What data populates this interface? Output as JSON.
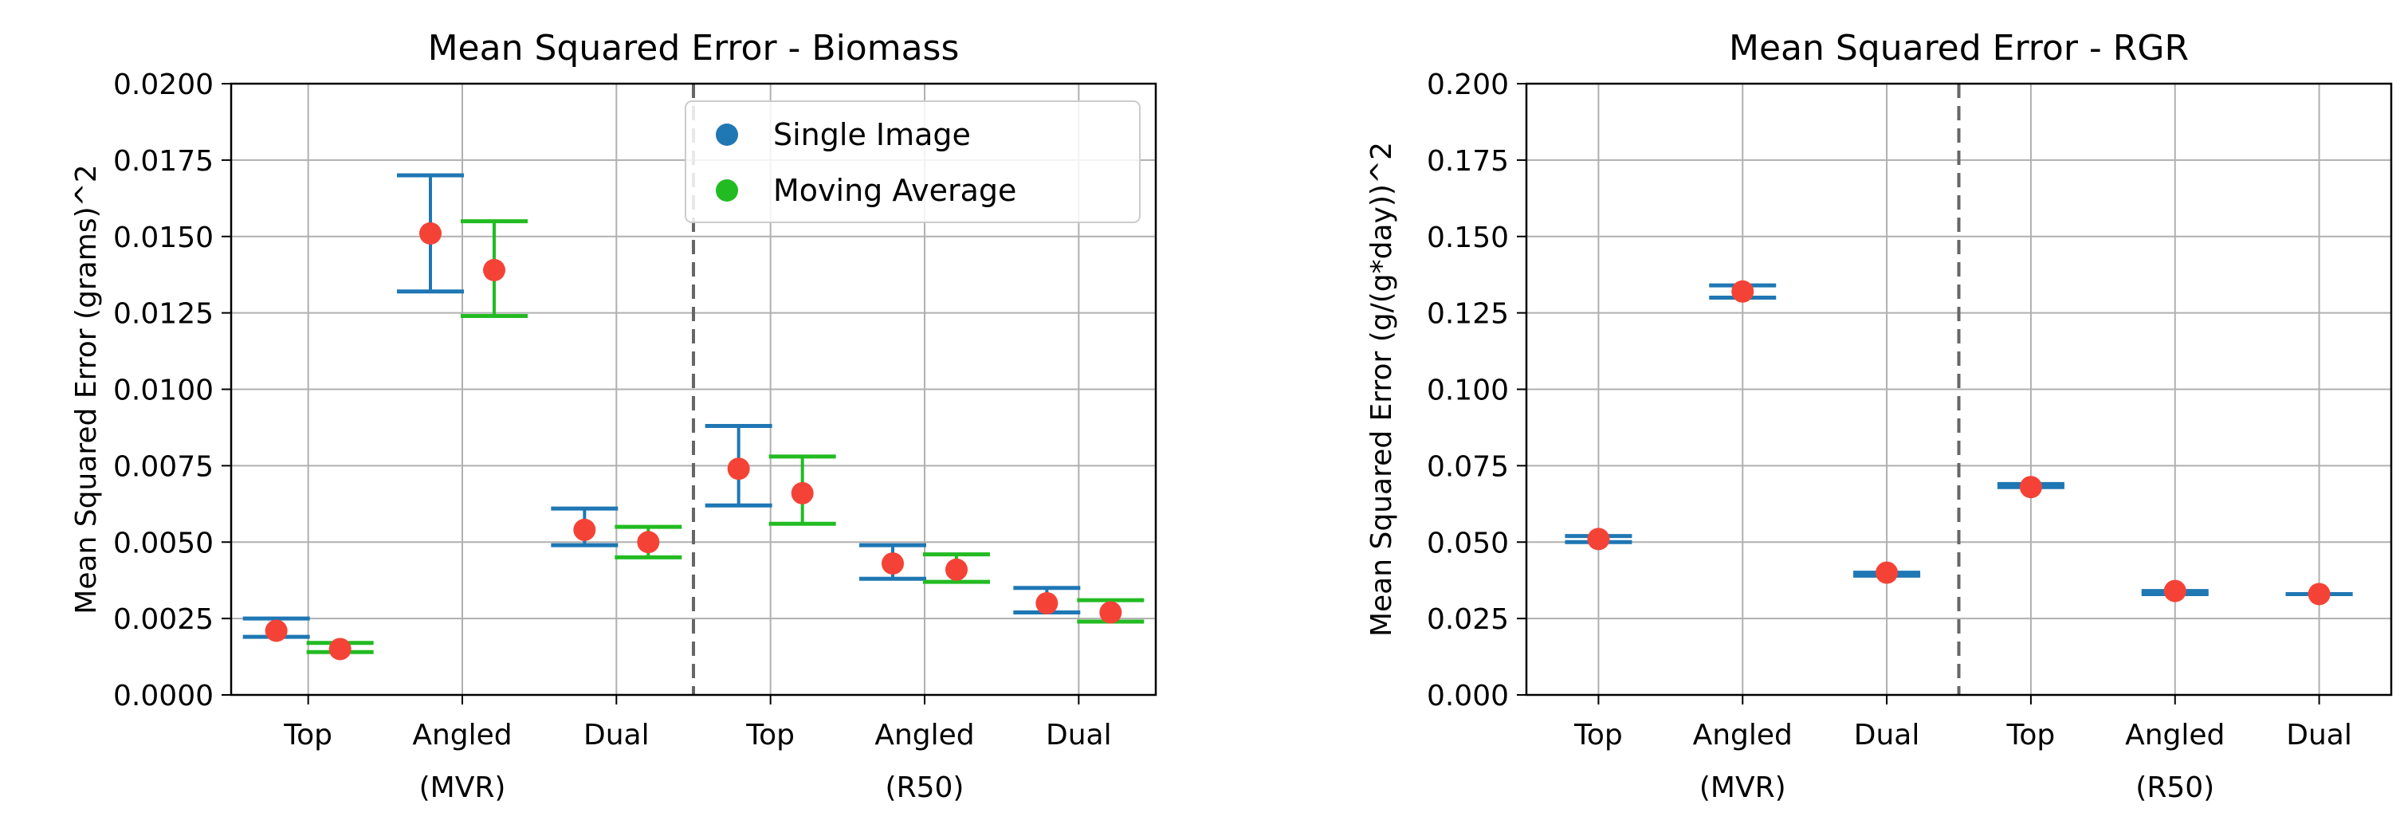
{
  "colors": {
    "single": "#1f77b4",
    "moving": "#22bb22",
    "point": "#f44336",
    "grid": "#b0b0b0",
    "axis": "#000000",
    "separator": "#666666"
  },
  "legend": {
    "single": "Single Image",
    "moving": "Moving Average"
  },
  "chart_data": [
    {
      "type": "errorbar",
      "title": "Mean Squared Error - Biomass",
      "ylabel": "Mean Squared Error (grams)^2",
      "ylim": [
        0,
        0.02
      ],
      "yticks": [
        "0.0000",
        "0.0025",
        "0.0050",
        "0.0075",
        "0.0100",
        "0.0125",
        "0.0150",
        "0.0175",
        "0.0200"
      ],
      "categories": [
        {
          "label": "Top",
          "sub": ""
        },
        {
          "label": "Angled",
          "sub": "(MVR)"
        },
        {
          "label": "Dual",
          "sub": ""
        },
        {
          "label": "Top",
          "sub": ""
        },
        {
          "label": "Angled",
          "sub": "(R50)"
        },
        {
          "label": "Dual",
          "sub": ""
        }
      ],
      "separator_after": 2,
      "legend_loc": "upper center",
      "series": [
        {
          "name": "Single Image",
          "key": "single",
          "points": [
            {
              "mean": 0.0021,
              "low": 0.0019,
              "high": 0.0025
            },
            {
              "mean": 0.0151,
              "low": 0.0132,
              "high": 0.017
            },
            {
              "mean": 0.0054,
              "low": 0.0049,
              "high": 0.0061
            },
            {
              "mean": 0.0074,
              "low": 0.0062,
              "high": 0.0088
            },
            {
              "mean": 0.0043,
              "low": 0.0038,
              "high": 0.0049
            },
            {
              "mean": 0.003,
              "low": 0.0027,
              "high": 0.0035
            }
          ]
        },
        {
          "name": "Moving Average",
          "key": "moving",
          "points": [
            {
              "mean": 0.0015,
              "low": 0.0014,
              "high": 0.0017
            },
            {
              "mean": 0.0139,
              "low": 0.0124,
              "high": 0.0155
            },
            {
              "mean": 0.005,
              "low": 0.0045,
              "high": 0.0055
            },
            {
              "mean": 0.0066,
              "low": 0.0056,
              "high": 0.0078
            },
            {
              "mean": 0.0041,
              "low": 0.0037,
              "high": 0.0046
            },
            {
              "mean": 0.0027,
              "low": 0.0024,
              "high": 0.0031
            }
          ]
        }
      ]
    },
    {
      "type": "errorbar",
      "title": "Mean Squared Error - RGR",
      "ylabel": "Mean Squared Error (g/(g*day))^2",
      "ylim": [
        0,
        0.2
      ],
      "yticks": [
        "0.000",
        "0.025",
        "0.050",
        "0.075",
        "0.100",
        "0.125",
        "0.150",
        "0.175",
        "0.200"
      ],
      "categories": [
        {
          "label": "Top",
          "sub": ""
        },
        {
          "label": "Angled",
          "sub": "(MVR)"
        },
        {
          "label": "Dual",
          "sub": ""
        },
        {
          "label": "Top",
          "sub": ""
        },
        {
          "label": "Angled",
          "sub": "(R50)"
        },
        {
          "label": "Dual",
          "sub": ""
        }
      ],
      "separator_after": 2,
      "series": [
        {
          "name": "Single Image",
          "key": "single",
          "points": [
            {
              "mean": 0.051,
              "low": 0.05,
              "high": 0.052
            },
            {
              "mean": 0.132,
              "low": 0.13,
              "high": 0.134
            },
            {
              "mean": 0.04,
              "low": 0.039,
              "high": 0.04
            },
            {
              "mean": 0.068,
              "low": 0.068,
              "high": 0.069
            },
            {
              "mean": 0.034,
              "low": 0.033,
              "high": 0.034
            },
            {
              "mean": 0.033,
              "low": 0.033,
              "high": 0.033
            }
          ]
        }
      ]
    }
  ]
}
